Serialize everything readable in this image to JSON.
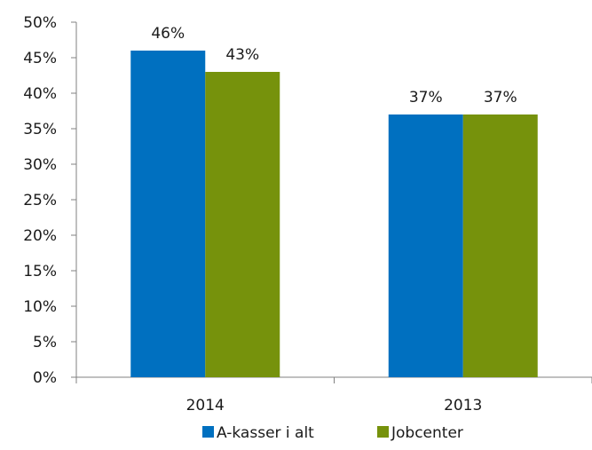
{
  "chart_data": {
    "type": "bar",
    "categories": [
      "2014",
      "2013"
    ],
    "series": [
      {
        "name": "A-kasser i alt",
        "values": [
          46,
          37
        ],
        "color": "#0070C0",
        "labels": [
          "46%",
          "37%"
        ]
      },
      {
        "name": "Jobcenter",
        "values": [
          43,
          37
        ],
        "color": "#76920C",
        "labels": [
          "43%",
          "37%"
        ]
      }
    ],
    "yticks": [
      "0%",
      "5%",
      "10%",
      "15%",
      "20%",
      "25%",
      "30%",
      "35%",
      "40%",
      "45%",
      "50%"
    ],
    "ylim": [
      0,
      50
    ],
    "grid": false,
    "legend_position": "bottom"
  }
}
